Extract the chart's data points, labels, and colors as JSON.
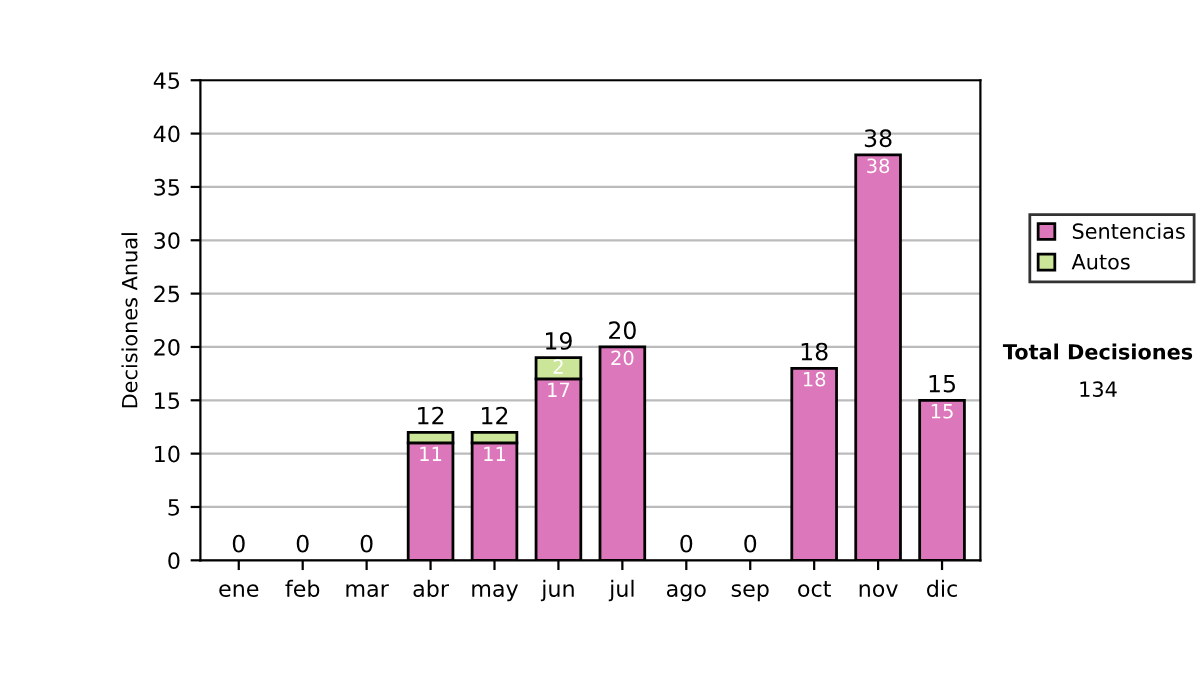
{
  "chart_data": {
    "type": "bar",
    "stacked": true,
    "ylabel": "Decisiones Anual",
    "categories": [
      "ene",
      "feb",
      "mar",
      "abr",
      "may",
      "jun",
      "jul",
      "ago",
      "sep",
      "oct",
      "nov",
      "dic"
    ],
    "series": [
      {
        "name": "Sentencias",
        "color": "#dd77bb",
        "values": [
          0,
          0,
          0,
          11,
          11,
          17,
          20,
          0,
          0,
          18,
          38,
          15
        ],
        "value_labels": [
          null,
          null,
          null,
          "11",
          "11",
          "17",
          "20",
          null,
          null,
          "18",
          "38",
          "15"
        ]
      },
      {
        "name": "Autos",
        "color": "#cce699",
        "values": [
          0,
          0,
          0,
          1,
          1,
          2,
          0,
          0,
          0,
          0,
          0,
          0
        ],
        "value_labels": [
          null,
          null,
          null,
          null,
          null,
          "2",
          null,
          null,
          null,
          null,
          null,
          null
        ]
      }
    ],
    "totals": [
      "0",
      "0",
      "0",
      "12",
      "12",
      "19",
      "20",
      "0",
      "0",
      "18",
      "38",
      "15"
    ],
    "ylim": [
      0,
      45
    ],
    "yticks": [
      0,
      5,
      10,
      15,
      20,
      25,
      30,
      35,
      40,
      45
    ],
    "grid": "y",
    "legend": "right",
    "annotations": [
      "Total Decisiones",
      "134"
    ]
  }
}
